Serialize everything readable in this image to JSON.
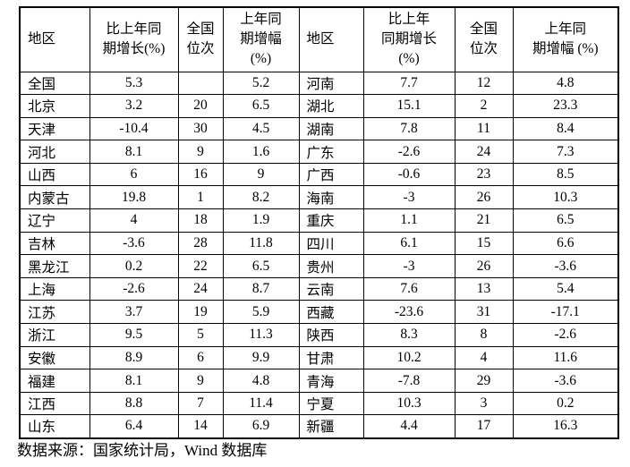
{
  "page": {
    "background": "#ffffff",
    "text_color": "#000000",
    "border_color": "#000000"
  },
  "table": {
    "columns": [
      {
        "id": "region-left",
        "label": "地区",
        "align": "left"
      },
      {
        "id": "yoy-growth-left",
        "label": "比上年同\n期增长(%)",
        "align": "center"
      },
      {
        "id": "national-rank-left",
        "label": "全国\n位次",
        "align": "center"
      },
      {
        "id": "prev-year-growth-left",
        "label": "上年同\n期增幅\n(%)",
        "align": "center"
      },
      {
        "id": "region-right",
        "label": "地区",
        "align": "left"
      },
      {
        "id": "yoy-growth-right",
        "label": "比上年\n同期增长\n(%)",
        "align": "center"
      },
      {
        "id": "national-rank-right",
        "label": "全国\n位次",
        "align": "center"
      },
      {
        "id": "prev-year-growth-right",
        "label": "上年同\n期增幅 (%)",
        "align": "center"
      }
    ],
    "rows": [
      [
        "全国",
        "5.3",
        "",
        "5.2",
        "河南",
        "7.7",
        "12",
        "4.8"
      ],
      [
        "北京",
        "3.2",
        "20",
        "6.5",
        "湖北",
        "15.1",
        "2",
        "23.3"
      ],
      [
        "天津",
        "-10.4",
        "30",
        "4.5",
        "湖南",
        "7.8",
        "11",
        "8.4"
      ],
      [
        "河北",
        "8.1",
        "9",
        "1.6",
        "广东",
        "-2.6",
        "24",
        "7.3"
      ],
      [
        "山西",
        "6",
        "16",
        "9",
        "广西",
        "-0.6",
        "23",
        "8.5"
      ],
      [
        "内蒙古",
        "19.8",
        "1",
        "8.2",
        "海南",
        "-3",
        "26",
        "10.3"
      ],
      [
        "辽宁",
        "4",
        "18",
        "1.9",
        "重庆",
        "1.1",
        "21",
        "6.5"
      ],
      [
        "吉林",
        "-3.6",
        "28",
        "11.8",
        "四川",
        "6.1",
        "15",
        "6.6"
      ],
      [
        "黑龙江",
        "0.2",
        "22",
        "6.5",
        "贵州",
        "-3",
        "26",
        "-3.6"
      ],
      [
        "上海",
        "-2.6",
        "24",
        "8.7",
        "云南",
        "7.6",
        "13",
        "5.4"
      ],
      [
        "江苏",
        "3.7",
        "19",
        "5.9",
        "西藏",
        "-23.6",
        "31",
        "-17.1"
      ],
      [
        "浙江",
        "9.5",
        "5",
        "11.3",
        "陕西",
        "8.3",
        "8",
        "-2.6"
      ],
      [
        "安徽",
        "8.9",
        "6",
        "9.9",
        "甘肃",
        "10.2",
        "4",
        "11.6"
      ],
      [
        "福建",
        "8.1",
        "9",
        "4.8",
        "青海",
        "-7.8",
        "29",
        "-3.6"
      ],
      [
        "江西",
        "8.8",
        "7",
        "11.4",
        "宁夏",
        "10.3",
        "3",
        "0.2"
      ],
      [
        "山东",
        "6.4",
        "14",
        "6.9",
        "新疆",
        "4.4",
        "17",
        "16.3"
      ]
    ]
  },
  "footer": {
    "text": "数据来源：国家统计局，Wind 数据库"
  }
}
